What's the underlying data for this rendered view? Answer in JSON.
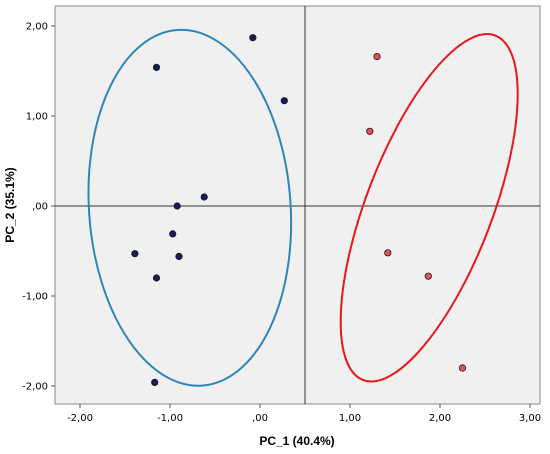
{
  "chart_data": {
    "type": "scatter",
    "title": "",
    "xlabel": "PC_1 (40.4%)",
    "ylabel": "PC_2 (35.1%)",
    "xlim": [
      -2.3,
      3.2
    ],
    "ylim": [
      -2.2,
      2.2
    ],
    "xticks": [
      -2,
      -1,
      0,
      1,
      2,
      3
    ],
    "xtick_labels": [
      "-2,00",
      "-1,00",
      ",00",
      "1,00",
      "2,00",
      "3,00"
    ],
    "yticks": [
      -2,
      -1,
      0,
      1,
      2
    ],
    "ytick_labels": [
      "-2,00",
      "-1,00",
      ",00",
      "1,00",
      "2,00"
    ],
    "reference_lines": {
      "x": 0.5,
      "y": 0
    },
    "grid": false,
    "plot_background": "#f0f0f0",
    "series": [
      {
        "marker_color": "#1a1a5e",
        "ellipse_color": "#2e86b8",
        "points": [
          {
            "x": -1.15,
            "y": 1.54
          },
          {
            "x": -0.08,
            "y": 1.87
          },
          {
            "x": 0.27,
            "y": 1.17
          },
          {
            "x": -0.62,
            "y": 0.1
          },
          {
            "x": -0.92,
            "y": 0.0
          },
          {
            "x": -0.97,
            "y": -0.31
          },
          {
            "x": -0.9,
            "y": -0.56
          },
          {
            "x": -1.39,
            "y": -0.53
          },
          {
            "x": -1.15,
            "y": -0.8
          },
          {
            "x": -1.17,
            "y": -1.96
          }
        ],
        "ellipse": {
          "cx": -0.78,
          "cy": -0.02,
          "rx": 1.12,
          "ry": 1.98,
          "angle_deg": -4
        }
      },
      {
        "marker_color": "#e35252",
        "ellipse_color": "#e8171a",
        "points": [
          {
            "x": 1.3,
            "y": 1.66
          },
          {
            "x": 1.22,
            "y": 0.83
          },
          {
            "x": 1.42,
            "y": -0.52
          },
          {
            "x": 1.87,
            "y": -0.78
          },
          {
            "x": 2.25,
            "y": -1.8
          }
        ],
        "ellipse": {
          "cx": 1.88,
          "cy": -0.02,
          "rx": 0.7,
          "ry": 2.05,
          "angle_deg": 21
        }
      }
    ]
  }
}
